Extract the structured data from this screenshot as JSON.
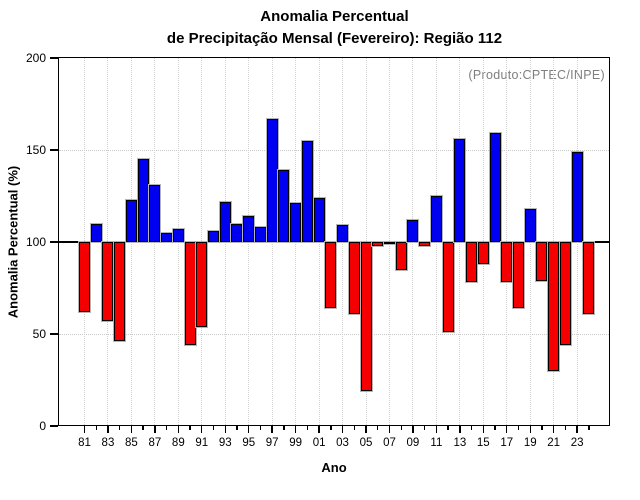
{
  "title": {
    "line1": "Anomalia Percentual",
    "line2": "de Precipitação Mensal (Fevereiro): Região 112"
  },
  "annotation": "(Produto:CPTEC/INPE)",
  "colors": {
    "positive_bar": "#0000f0",
    "negative_bar": "#f40000",
    "annotation_text": "#7f7f7f",
    "gridline": "#c9c9c9",
    "frame": "#000000"
  },
  "chart_data": {
    "type": "bar",
    "title": "Anomalia Percentual de Precipitação Mensal (Fevereiro): Região 112",
    "xlabel": "Ano",
    "ylabel": "Anomalia Percentual (%)",
    "ylim": [
      0,
      200
    ],
    "y_ticks": [
      "0",
      "50",
      "100",
      "150",
      "200"
    ],
    "baseline": 100,
    "grid": "dotted, horizontal at 50 and 150, vertical at labeled years",
    "legend": "none",
    "color_rule": "blue above baseline 100, red below",
    "x_tick_labels": [
      "81",
      "83",
      "85",
      "87",
      "89",
      "91",
      "93",
      "95",
      "97",
      "99",
      "01",
      "03",
      "05",
      "07",
      "09",
      "11",
      "13",
      "15",
      "17",
      "19",
      "21",
      "23"
    ],
    "years": [
      1981,
      1982,
      1983,
      1984,
      1985,
      1986,
      1987,
      1988,
      1989,
      1990,
      1991,
      1992,
      1993,
      1994,
      1995,
      1996,
      1997,
      1998,
      1999,
      2000,
      2001,
      2002,
      2003,
      2004,
      2005,
      2006,
      2007,
      2008,
      2009,
      2010,
      2011,
      2012,
      2013,
      2014,
      2015,
      2016,
      2017,
      2018,
      2019,
      2020,
      2021,
      2022,
      2023,
      2024
    ],
    "values": [
      62,
      110,
      57,
      46,
      123,
      145,
      131,
      105,
      107,
      44,
      54,
      106,
      122,
      110,
      114,
      108,
      167,
      139,
      121,
      155,
      124,
      64,
      109,
      61,
      19,
      98,
      99,
      85,
      112,
      98,
      125,
      51,
      156,
      78,
      88,
      159,
      78,
      64,
      118,
      79,
      30,
      44,
      149,
      61
    ]
  }
}
